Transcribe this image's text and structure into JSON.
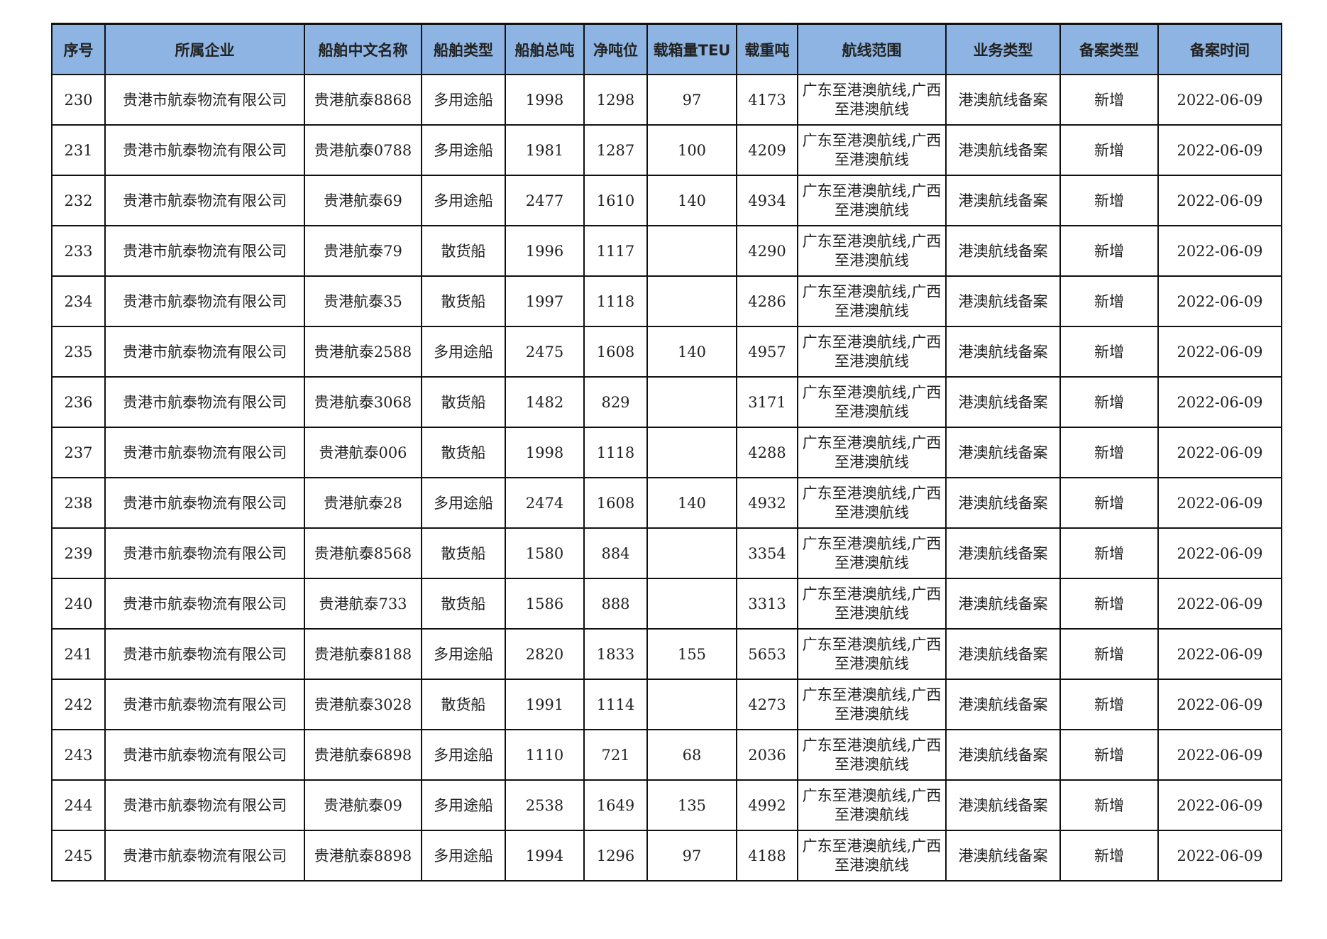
{
  "colors": {
    "header_bg": "#8DB4E2"
  },
  "table": {
    "headers": [
      "序号",
      "所属企业",
      "船舶中文名称",
      "船舶类型",
      "船舶总吨",
      "净吨位",
      "载箱量TEU",
      "载重吨",
      "航线范围",
      "业务类型",
      "备案类型",
      "备案时间"
    ],
    "rows": [
      [
        "230",
        "贵港市航泰物流有限公司",
        "贵港航泰8868",
        "多用途船",
        "1998",
        "1298",
        "97",
        "4173",
        "广东至港澳航线,广西至港澳航线",
        "港澳航线备案",
        "新增",
        "2022-06-09"
      ],
      [
        "231",
        "贵港市航泰物流有限公司",
        "贵港航泰0788",
        "多用途船",
        "1981",
        "1287",
        "100",
        "4209",
        "广东至港澳航线,广西至港澳航线",
        "港澳航线备案",
        "新增",
        "2022-06-09"
      ],
      [
        "232",
        "贵港市航泰物流有限公司",
        "贵港航泰69",
        "多用途船",
        "2477",
        "1610",
        "140",
        "4934",
        "广东至港澳航线,广西至港澳航线",
        "港澳航线备案",
        "新增",
        "2022-06-09"
      ],
      [
        "233",
        "贵港市航泰物流有限公司",
        "贵港航泰79",
        "散货船",
        "1996",
        "1117",
        "",
        "4290",
        "广东至港澳航线,广西至港澳航线",
        "港澳航线备案",
        "新增",
        "2022-06-09"
      ],
      [
        "234",
        "贵港市航泰物流有限公司",
        "贵港航泰35",
        "散货船",
        "1997",
        "1118",
        "",
        "4286",
        "广东至港澳航线,广西至港澳航线",
        "港澳航线备案",
        "新增",
        "2022-06-09"
      ],
      [
        "235",
        "贵港市航泰物流有限公司",
        "贵港航泰2588",
        "多用途船",
        "2475",
        "1608",
        "140",
        "4957",
        "广东至港澳航线,广西至港澳航线",
        "港澳航线备案",
        "新增",
        "2022-06-09"
      ],
      [
        "236",
        "贵港市航泰物流有限公司",
        "贵港航泰3068",
        "散货船",
        "1482",
        "829",
        "",
        "3171",
        "广东至港澳航线,广西至港澳航线",
        "港澳航线备案",
        "新增",
        "2022-06-09"
      ],
      [
        "237",
        "贵港市航泰物流有限公司",
        "贵港航泰006",
        "散货船",
        "1998",
        "1118",
        "",
        "4288",
        "广东至港澳航线,广西至港澳航线",
        "港澳航线备案",
        "新增",
        "2022-06-09"
      ],
      [
        "238",
        "贵港市航泰物流有限公司",
        "贵港航泰28",
        "多用途船",
        "2474",
        "1608",
        "140",
        "4932",
        "广东至港澳航线,广西至港澳航线",
        "港澳航线备案",
        "新增",
        "2022-06-09"
      ],
      [
        "239",
        "贵港市航泰物流有限公司",
        "贵港航泰8568",
        "散货船",
        "1580",
        "884",
        "",
        "3354",
        "广东至港澳航线,广西至港澳航线",
        "港澳航线备案",
        "新增",
        "2022-06-09"
      ],
      [
        "240",
        "贵港市航泰物流有限公司",
        "贵港航泰733",
        "散货船",
        "1586",
        "888",
        "",
        "3313",
        "广东至港澳航线,广西至港澳航线",
        "港澳航线备案",
        "新增",
        "2022-06-09"
      ],
      [
        "241",
        "贵港市航泰物流有限公司",
        "贵港航泰8188",
        "多用途船",
        "2820",
        "1833",
        "155",
        "5653",
        "广东至港澳航线,广西至港澳航线",
        "港澳航线备案",
        "新增",
        "2022-06-09"
      ],
      [
        "242",
        "贵港市航泰物流有限公司",
        "贵港航泰3028",
        "散货船",
        "1991",
        "1114",
        "",
        "4273",
        "广东至港澳航线,广西至港澳航线",
        "港澳航线备案",
        "新增",
        "2022-06-09"
      ],
      [
        "243",
        "贵港市航泰物流有限公司",
        "贵港航泰6898",
        "多用途船",
        "1110",
        "721",
        "68",
        "2036",
        "广东至港澳航线,广西至港澳航线",
        "港澳航线备案",
        "新增",
        "2022-06-09"
      ],
      [
        "244",
        "贵港市航泰物流有限公司",
        "贵港航泰09",
        "多用途船",
        "2538",
        "1649",
        "135",
        "4992",
        "广东至港澳航线,广西至港澳航线",
        "港澳航线备案",
        "新增",
        "2022-06-09"
      ],
      [
        "245",
        "贵港市航泰物流有限公司",
        "贵港航泰8898",
        "多用途船",
        "1994",
        "1296",
        "97",
        "4188",
        "广东至港澳航线,广西至港澳航线",
        "港澳航线备案",
        "新增",
        "2022-06-09"
      ]
    ]
  }
}
